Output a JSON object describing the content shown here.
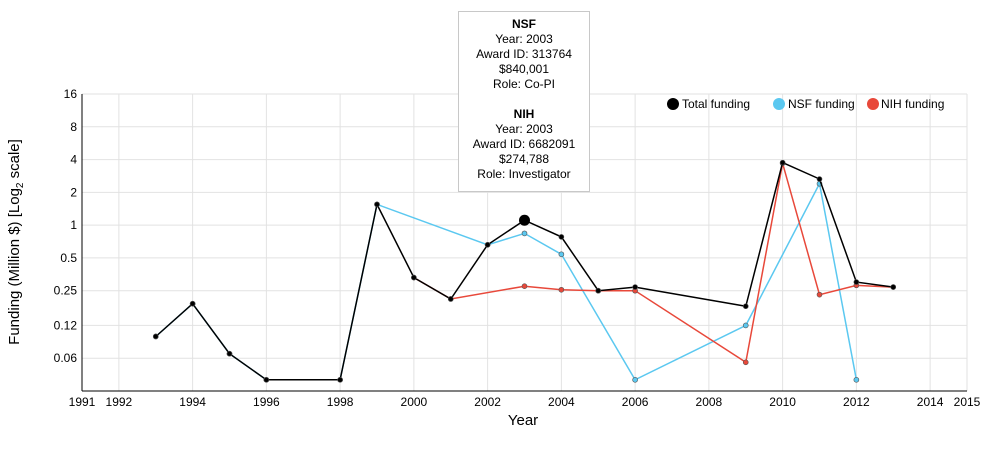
{
  "chart_data": {
    "type": "line",
    "xlabel": "Year",
    "ylabel_prefix": "Funding (Million $) [Log",
    "ylabel_sub": "2",
    "ylabel_suffix": " scale]",
    "y_scale": "log2",
    "xlim": [
      1991,
      2015
    ],
    "ylim": [
      0.03,
      16
    ],
    "x_ticks": [
      1991,
      1992,
      1994,
      1996,
      1998,
      2000,
      2002,
      2004,
      2006,
      2008,
      2010,
      2012,
      2014,
      2015
    ],
    "y_ticks": [
      {
        "value": 0.06,
        "label": "0.06"
      },
      {
        "value": 0.12,
        "label": "0.12"
      },
      {
        "value": 0.25,
        "label": "0.25"
      },
      {
        "value": 0.5,
        "label": "0.5"
      },
      {
        "value": 1,
        "label": "1"
      },
      {
        "value": 2,
        "label": "2"
      },
      {
        "value": 4,
        "label": "4"
      },
      {
        "value": 8,
        "label": "8"
      },
      {
        "value": 16,
        "label": "16"
      }
    ],
    "grid": true,
    "legend_position": "top-right",
    "highlight": {
      "series": "Total funding",
      "x": 2003
    },
    "series": [
      {
        "name": "NSF funding",
        "color": "#5bc8f0",
        "points": [
          {
            "x": 1993,
            "y": 0.095
          },
          {
            "x": 1994,
            "y": 0.19
          },
          {
            "x": 1995,
            "y": 0.066
          },
          {
            "x": 1996,
            "y": 0.038
          },
          {
            "x": 1998,
            "y": 0.038
          },
          {
            "x": 1999,
            "y": 1.55
          },
          {
            "x": 2002,
            "y": 0.66
          },
          {
            "x": 2003,
            "y": 0.84
          },
          {
            "x": 2004,
            "y": 0.54
          },
          {
            "x": 2006,
            "y": 0.038
          },
          {
            "x": 2009,
            "y": 0.12
          },
          {
            "x": 2011,
            "y": 2.4
          },
          {
            "x": 2012,
            "y": 0.038
          }
        ]
      },
      {
        "name": "NIH funding",
        "color": "#e8483a",
        "points": [
          {
            "x": 2000,
            "y": 0.33
          },
          {
            "x": 2001,
            "y": 0.21
          },
          {
            "x": 2003,
            "y": 0.275
          },
          {
            "x": 2004,
            "y": 0.255
          },
          {
            "x": 2005,
            "y": 0.25
          },
          {
            "x": 2006,
            "y": 0.25
          },
          {
            "x": 2009,
            "y": 0.055
          },
          {
            "x": 2010,
            "y": 3.7
          },
          {
            "x": 2011,
            "y": 0.23
          },
          {
            "x": 2012,
            "y": 0.28
          },
          {
            "x": 2013,
            "y": 0.27
          }
        ]
      },
      {
        "name": "Total funding",
        "color": "#000000",
        "points": [
          {
            "x": 1993,
            "y": 0.095
          },
          {
            "x": 1994,
            "y": 0.19
          },
          {
            "x": 1995,
            "y": 0.066
          },
          {
            "x": 1996,
            "y": 0.038
          },
          {
            "x": 1998,
            "y": 0.038
          },
          {
            "x": 1999,
            "y": 1.55
          },
          {
            "x": 2000,
            "y": 0.33
          },
          {
            "x": 2001,
            "y": 0.21
          },
          {
            "x": 2002,
            "y": 0.66
          },
          {
            "x": 2003,
            "y": 1.11
          },
          {
            "x": 2004,
            "y": 0.78
          },
          {
            "x": 2005,
            "y": 0.25
          },
          {
            "x": 2006,
            "y": 0.27
          },
          {
            "x": 2009,
            "y": 0.18
          },
          {
            "x": 2010,
            "y": 3.75
          },
          {
            "x": 2011,
            "y": 2.65
          },
          {
            "x": 2012,
            "y": 0.3
          },
          {
            "x": 2013,
            "y": 0.27
          }
        ]
      }
    ],
    "legend": [
      {
        "label": "Total funding",
        "color": "#000000"
      },
      {
        "label": "NSF funding",
        "color": "#5bc8f0"
      },
      {
        "label": "NIH funding",
        "color": "#e8483a"
      }
    ]
  },
  "tooltip": {
    "nsf": {
      "agency": "NSF",
      "year": "Year: 2003",
      "award_id": "Award ID: 313764",
      "amount": "$840,001",
      "role": "Role: Co-PI"
    },
    "nih": {
      "agency": "NIH",
      "year": "Year: 2003",
      "award_id": "Award ID: 6682091",
      "amount": "$274,788",
      "role": "Role: Investigator"
    }
  }
}
